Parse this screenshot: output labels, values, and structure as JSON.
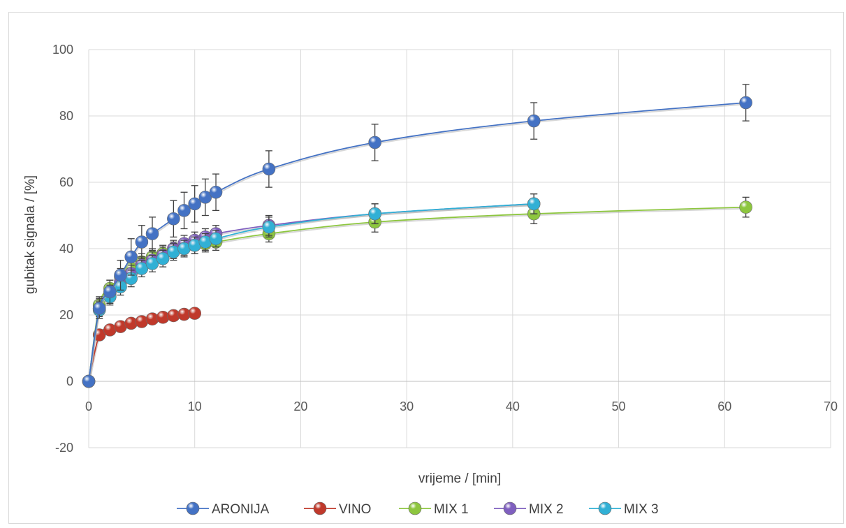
{
  "chart_data": {
    "type": "scatter",
    "title": "",
    "xlabel": "vrijeme / [min]",
    "ylabel": "gubitak signala / [%]",
    "xlim": [
      0,
      70
    ],
    "ylim": [
      -20,
      100
    ],
    "xticks": [
      0,
      10,
      20,
      30,
      40,
      50,
      60,
      70
    ],
    "yticks": [
      -20,
      0,
      20,
      40,
      60,
      80,
      100
    ],
    "grid": true,
    "legend_position": "bottom",
    "series": [
      {
        "name": "ARONIJA",
        "color": "#4472c4",
        "x": [
          0,
          1,
          2,
          3,
          4,
          5,
          6,
          8,
          9,
          10,
          11,
          12,
          17,
          27,
          42,
          62
        ],
        "y": [
          0,
          22,
          27,
          32,
          37.5,
          42,
          44.5,
          49,
          51.5,
          53.5,
          55.5,
          57,
          64,
          72,
          78.5,
          84
        ],
        "error": [
          0,
          3,
          3.5,
          4.5,
          5.5,
          5,
          5,
          5.5,
          5.5,
          5.5,
          5.5,
          5.5,
          5.5,
          5.5,
          5.5,
          5.5
        ]
      },
      {
        "name": "VINO",
        "color": "#c0392b",
        "x": [
          0,
          1,
          2,
          3,
          4,
          5,
          6,
          7,
          8,
          9,
          10
        ],
        "y": [
          0,
          14,
          15.5,
          16.5,
          17.5,
          18,
          18.8,
          19.3,
          19.8,
          20.2,
          20.5
        ],
        "error": [
          0,
          0.5,
          0.5,
          0.5,
          0.5,
          0.5,
          0.5,
          0.5,
          0.5,
          0.5,
          0.5
        ]
      },
      {
        "name": "MIX 1",
        "color": "#8dc63f",
        "x": [
          0,
          1,
          2,
          3,
          4,
          5,
          6,
          7,
          8,
          9,
          10,
          11,
          12,
          17,
          27,
          42,
          62
        ],
        "y": [
          0,
          23,
          28,
          31.5,
          34,
          36,
          37.5,
          38.5,
          39.5,
          40.5,
          41,
          41.5,
          42,
          44.5,
          48,
          50.5,
          52.5
        ],
        "error": [
          0,
          2.5,
          2.5,
          2.5,
          2.5,
          2.5,
          2.5,
          2.5,
          2.5,
          2.5,
          2.5,
          2.5,
          2.5,
          2.5,
          3,
          3,
          3
        ]
      },
      {
        "name": "MIX 2",
        "color": "#7f5fbf",
        "x": [
          0,
          1,
          2,
          3,
          4,
          5,
          6,
          7,
          8,
          9,
          10,
          11,
          12,
          17,
          27,
          42
        ],
        "y": [
          0,
          22,
          26.5,
          30,
          32.5,
          35,
          36.5,
          38,
          40,
          41.5,
          42.5,
          43.5,
          44.5,
          47,
          50.5,
          53.5
        ],
        "error": [
          0,
          2.5,
          2.5,
          2.5,
          2.5,
          2.5,
          2.5,
          2.5,
          2.5,
          2.5,
          2.5,
          2.5,
          2.5,
          3,
          3,
          3
        ]
      },
      {
        "name": "MIX 3",
        "color": "#31b0d5",
        "x": [
          0,
          1,
          2,
          3,
          4,
          5,
          6,
          7,
          8,
          9,
          10,
          11,
          12,
          17,
          27,
          42
        ],
        "y": [
          0,
          21.5,
          25.5,
          28.5,
          31,
          34,
          35.5,
          37,
          39,
          40,
          41,
          42,
          43,
          46.5,
          50.5,
          53.5
        ],
        "error": [
          0,
          2.5,
          2.5,
          2.5,
          2.5,
          2.5,
          2.5,
          2.5,
          2.5,
          2.5,
          2.5,
          2.5,
          2.5,
          3,
          3,
          3
        ]
      }
    ]
  }
}
